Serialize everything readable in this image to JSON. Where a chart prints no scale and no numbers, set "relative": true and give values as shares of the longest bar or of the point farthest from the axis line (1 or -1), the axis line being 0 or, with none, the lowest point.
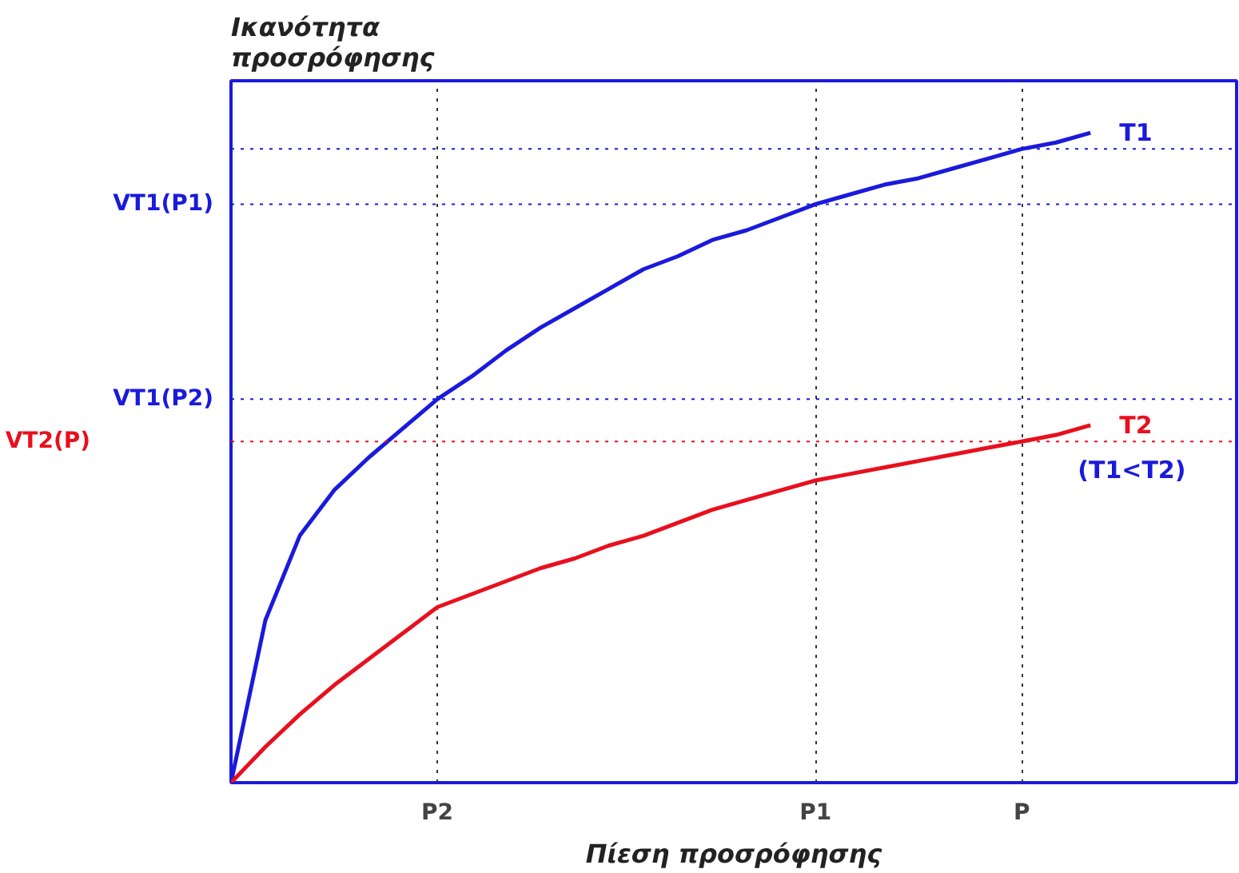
{
  "chart_data": {
    "type": "line",
    "relative": true,
    "ylabel": "Ικανότητα\nπροσρόφησης",
    "xlabel": "Πίεση προσρόφησης",
    "grid": "x",
    "marker": "none",
    "line_style": "solid",
    "categories": [
      null,
      null,
      null,
      null,
      null,
      null,
      "P2",
      null,
      null,
      null,
      null,
      null,
      null,
      null,
      null,
      null,
      null,
      "P1",
      null,
      null,
      null,
      null,
      null,
      "P",
      null,
      null
    ],
    "series": [
      {
        "name": "T1",
        "color": "#1a1adc",
        "values": [
          0,
          0.25,
          0.38,
          0.45,
          0.5,
          0.545,
          0.59,
          0.625,
          0.665,
          0.7,
          0.73,
          0.76,
          0.79,
          0.81,
          0.835,
          0.85,
          0.87,
          0.89,
          0.905,
          0.92,
          0.93,
          0.945,
          0.96,
          0.975,
          0.985,
          1.0
        ]
      },
      {
        "name": "T2",
        "color": "#e8101e",
        "values": [
          0,
          0.055,
          0.105,
          0.15,
          0.19,
          0.23,
          0.27,
          0.29,
          0.31,
          0.33,
          0.345,
          0.365,
          0.38,
          0.4,
          0.42,
          0.435,
          0.45,
          0.465,
          0.475,
          0.485,
          0.495,
          0.505,
          0.515,
          0.525,
          0.535,
          0.55
        ]
      }
    ],
    "ref_lines": [
      {
        "axis": "y",
        "value": 0.975,
        "label": null,
        "line_style": "dotted",
        "color": "#1a1adc"
      },
      {
        "axis": "y",
        "value": 0.89,
        "label": "VT1(P1)",
        "line_style": "dotted",
        "color": "#1a1adc"
      },
      {
        "axis": "y",
        "value": 0.59,
        "label": "VT1(P2)",
        "line_style": "dotted",
        "color": "#1a1adc"
      },
      {
        "axis": "y",
        "value": 0.525,
        "label": "VT2(P)",
        "line_style": "dotted",
        "color": "#e8101e"
      }
    ],
    "annotations": [
      "(T1<T2)"
    ]
  }
}
